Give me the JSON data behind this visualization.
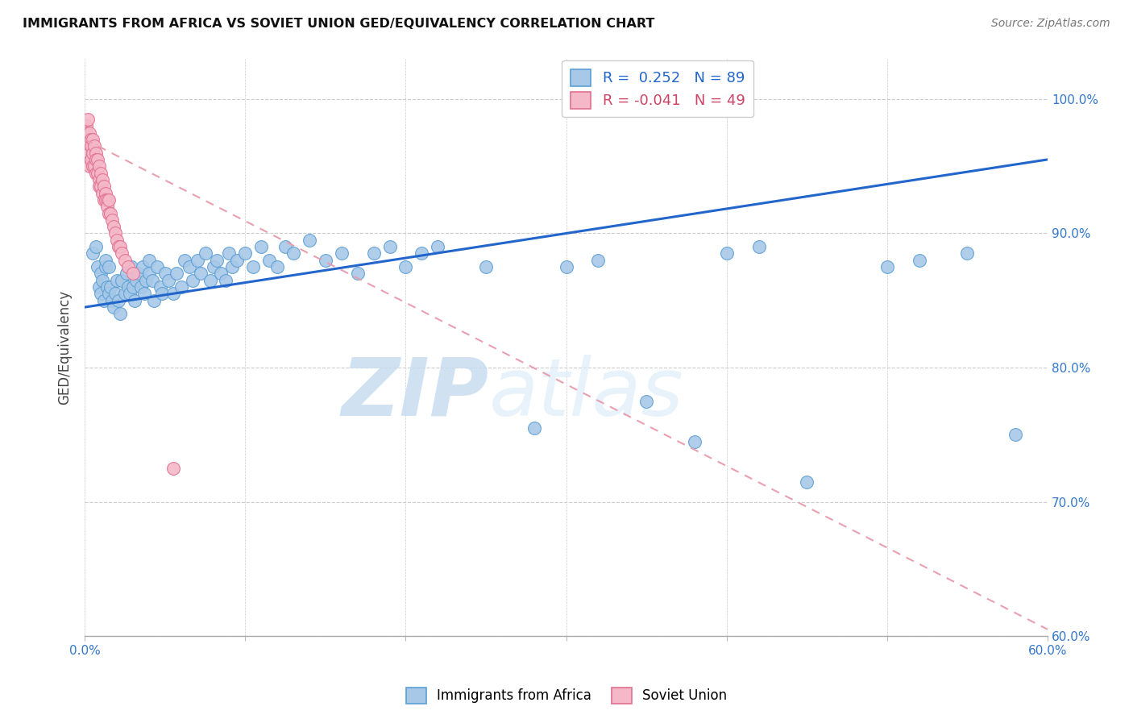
{
  "title": "IMMIGRANTS FROM AFRICA VS SOVIET UNION GED/EQUIVALENCY CORRELATION CHART",
  "source": "Source: ZipAtlas.com",
  "ylabel": "GED/Equivalency",
  "africa_color": "#a8c8e8",
  "africa_edge_color": "#5a9fd4",
  "soviet_color": "#f5b8c8",
  "soviet_edge_color": "#e07090",
  "africa_line_color": "#2266cc",
  "soviet_line_color": "#e8a0b0",
  "watermark_zip": "ZIP",
  "watermark_atlas": "atlas",
  "africa_R": 0.252,
  "africa_N": 89,
  "soviet_R": -0.041,
  "soviet_N": 49,
  "africa_trend_x0": 0.0,
  "africa_trend_y0": 84.5,
  "africa_trend_x1": 0.6,
  "africa_trend_y1": 95.5,
  "soviet_trend_x0": 0.0,
  "soviet_trend_y0": 97.0,
  "soviet_trend_x1": 0.6,
  "soviet_trend_y1": 60.5,
  "africa_x": [
    0.005,
    0.007,
    0.008,
    0.009,
    0.01,
    0.01,
    0.011,
    0.012,
    0.013,
    0.013,
    0.014,
    0.015,
    0.015,
    0.016,
    0.017,
    0.018,
    0.019,
    0.02,
    0.021,
    0.022,
    0.023,
    0.025,
    0.026,
    0.027,
    0.028,
    0.029,
    0.03,
    0.031,
    0.032,
    0.033,
    0.035,
    0.036,
    0.037,
    0.038,
    0.04,
    0.04,
    0.042,
    0.043,
    0.045,
    0.047,
    0.048,
    0.05,
    0.052,
    0.055,
    0.057,
    0.06,
    0.062,
    0.065,
    0.067,
    0.07,
    0.072,
    0.075,
    0.078,
    0.08,
    0.082,
    0.085,
    0.088,
    0.09,
    0.092,
    0.095,
    0.1,
    0.105,
    0.11,
    0.115,
    0.12,
    0.125,
    0.13,
    0.14,
    0.15,
    0.16,
    0.17,
    0.18,
    0.19,
    0.2,
    0.21,
    0.22,
    0.25,
    0.28,
    0.3,
    0.32,
    0.35,
    0.38,
    0.4,
    0.42,
    0.45,
    0.5,
    0.52,
    0.55,
    0.58
  ],
  "africa_y": [
    88.5,
    89.0,
    87.5,
    86.0,
    85.5,
    87.0,
    86.5,
    85.0,
    87.5,
    88.0,
    86.0,
    85.5,
    87.5,
    86.0,
    85.0,
    84.5,
    85.5,
    86.5,
    85.0,
    84.0,
    86.5,
    85.5,
    87.0,
    86.0,
    85.5,
    87.5,
    86.0,
    85.0,
    86.5,
    87.0,
    86.0,
    87.5,
    85.5,
    86.5,
    87.0,
    88.0,
    86.5,
    85.0,
    87.5,
    86.0,
    85.5,
    87.0,
    86.5,
    85.5,
    87.0,
    86.0,
    88.0,
    87.5,
    86.5,
    88.0,
    87.0,
    88.5,
    86.5,
    87.5,
    88.0,
    87.0,
    86.5,
    88.5,
    87.5,
    88.0,
    88.5,
    87.5,
    89.0,
    88.0,
    87.5,
    89.0,
    88.5,
    89.5,
    88.0,
    88.5,
    87.0,
    88.5,
    89.0,
    87.5,
    88.5,
    89.0,
    87.5,
    75.5,
    87.5,
    88.0,
    77.5,
    74.5,
    88.5,
    89.0,
    71.5,
    87.5,
    88.0,
    88.5,
    75.0
  ],
  "soviet_x": [
    0.001,
    0.001,
    0.001,
    0.002,
    0.002,
    0.002,
    0.003,
    0.003,
    0.003,
    0.004,
    0.004,
    0.004,
    0.005,
    0.005,
    0.005,
    0.006,
    0.006,
    0.007,
    0.007,
    0.007,
    0.008,
    0.008,
    0.009,
    0.009,
    0.009,
    0.01,
    0.01,
    0.011,
    0.011,
    0.012,
    0.012,
    0.013,
    0.013,
    0.014,
    0.014,
    0.015,
    0.015,
    0.016,
    0.017,
    0.018,
    0.019,
    0.02,
    0.021,
    0.022,
    0.023,
    0.025,
    0.027,
    0.03,
    0.055
  ],
  "soviet_y": [
    98.0,
    97.5,
    96.0,
    98.5,
    97.0,
    95.5,
    97.5,
    96.0,
    95.0,
    97.0,
    96.5,
    95.5,
    97.0,
    96.0,
    95.0,
    96.5,
    95.0,
    96.0,
    95.5,
    94.5,
    95.5,
    94.5,
    95.0,
    94.0,
    93.5,
    94.5,
    93.5,
    94.0,
    93.0,
    93.5,
    92.5,
    93.0,
    92.5,
    92.5,
    92.0,
    92.5,
    91.5,
    91.5,
    91.0,
    90.5,
    90.0,
    89.5,
    89.0,
    89.0,
    88.5,
    88.0,
    87.5,
    87.0,
    72.5
  ],
  "xlim": [
    0.0,
    0.6
  ],
  "ylim": [
    60.0,
    103.0
  ],
  "xtick_positions": [
    0.0,
    0.1,
    0.2,
    0.3,
    0.4,
    0.5,
    0.6
  ],
  "ytick_positions": [
    60,
    70,
    80,
    90,
    100
  ],
  "ytick_labels": [
    "60.0%",
    "70.0%",
    "80.0%",
    "90.0%",
    "100.0%"
  ]
}
